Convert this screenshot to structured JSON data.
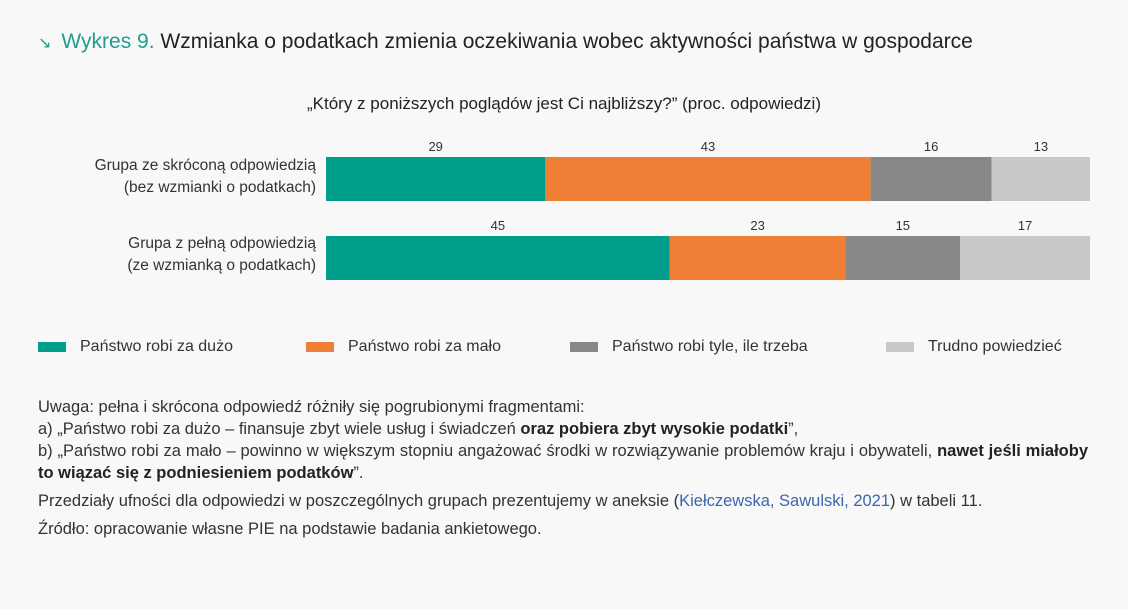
{
  "header": {
    "title_prefix": "Wykres 9.",
    "title_text": "Wzmianka o podatkach zmienia oczekiwania wobec aktywności państwa w gospodarce"
  },
  "chart_data": {
    "type": "bar",
    "orientation": "horizontal-stacked",
    "title": "„Który z poniższych poglądów jest Ci najbliższy?” (proc. odpowiedzi)",
    "categories": [
      [
        "Grupa ze skróconą odpowiedzią",
        "(bez wzmianki o podatkach)"
      ],
      [
        "Grupa z pełną odpowiedzią",
        "(ze wzmianką o podatkach)"
      ]
    ],
    "series": [
      {
        "name": "Państwo robi za dużo",
        "color": "#009f8c",
        "values": [
          29,
          45
        ]
      },
      {
        "name": "Państwo robi za mało",
        "color": "#ef7f34",
        "values": [
          43,
          23
        ]
      },
      {
        "name": "Państwo robi tyle, ile trzeba",
        "color": "#878787",
        "values": [
          16,
          15
        ]
      },
      {
        "name": "Trudno powiedzieć",
        "color": "#c8c8c8",
        "values": [
          13,
          17
        ]
      }
    ],
    "legend_position": "bottom"
  },
  "notes": {
    "line1": "Uwaga: pełna i skrócona odpowiedź różniły się pogrubionymi fragmentami:",
    "a_pre": "a) „Państwo robi za dużo – finansuje zbyt wiele usług i świadczeń ",
    "a_bold": "oraz pobiera zbyt wysokie podatki",
    "a_post": "”,",
    "b_pre": "b) „Państwo robi za mało – powinno w większym stopniu angażować środki w rozwiązywanie problemów kraju i obywateli, ",
    "b_bold": "nawet jeśli miałoby to wiązać się z podniesieniem podatków",
    "b_post": "”.",
    "ci_pre": "Przedziały ufności dla odpowiedzi w poszczególnych grupach prezentujemy w aneksie (",
    "ci_link": "Kiełczewska, Sawulski, 2021",
    "ci_post": ") w tabeli 11.",
    "source": "Źródło: opracowanie własne PIE na podstawie badania ankietowego."
  }
}
